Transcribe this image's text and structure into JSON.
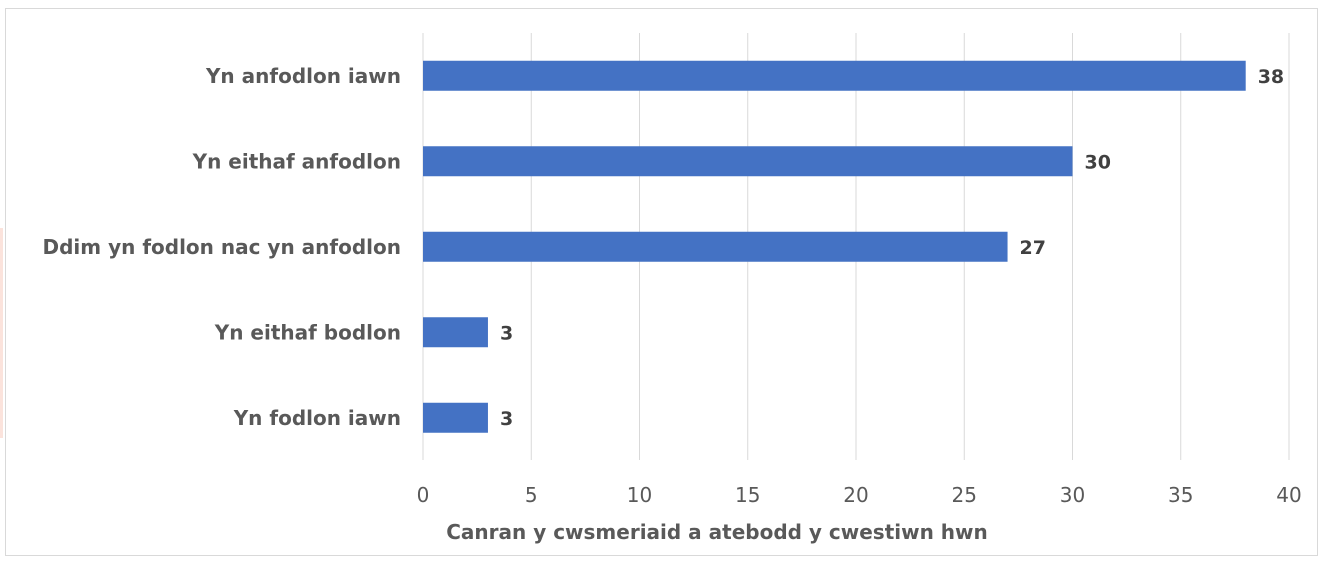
{
  "chart_data": {
    "type": "bar",
    "orientation": "horizontal",
    "categories": [
      "Yn anfodlon iawn",
      "Yn eithaf anfodlon",
      "Ddim yn fodlon nac yn anfodlon",
      "Yn eithaf bodlon",
      "Yn fodlon iawn"
    ],
    "values": [
      38,
      30,
      27,
      3,
      3
    ],
    "data_labels": [
      "38",
      "30",
      "27",
      "3",
      "3"
    ],
    "xlabel": "Canran y cwsmeriaid a atebodd y cwestiwn hwn",
    "ylabel": "",
    "xlim": [
      0,
      40
    ],
    "x_ticks": [
      0,
      5,
      10,
      15,
      20,
      25,
      30,
      35,
      40
    ],
    "grid": "vertical",
    "legend": "none",
    "colors": {
      "bar": "#4472c4",
      "grid": "#d9d9d9",
      "text": "#595959",
      "data_label": "#404040"
    }
  }
}
